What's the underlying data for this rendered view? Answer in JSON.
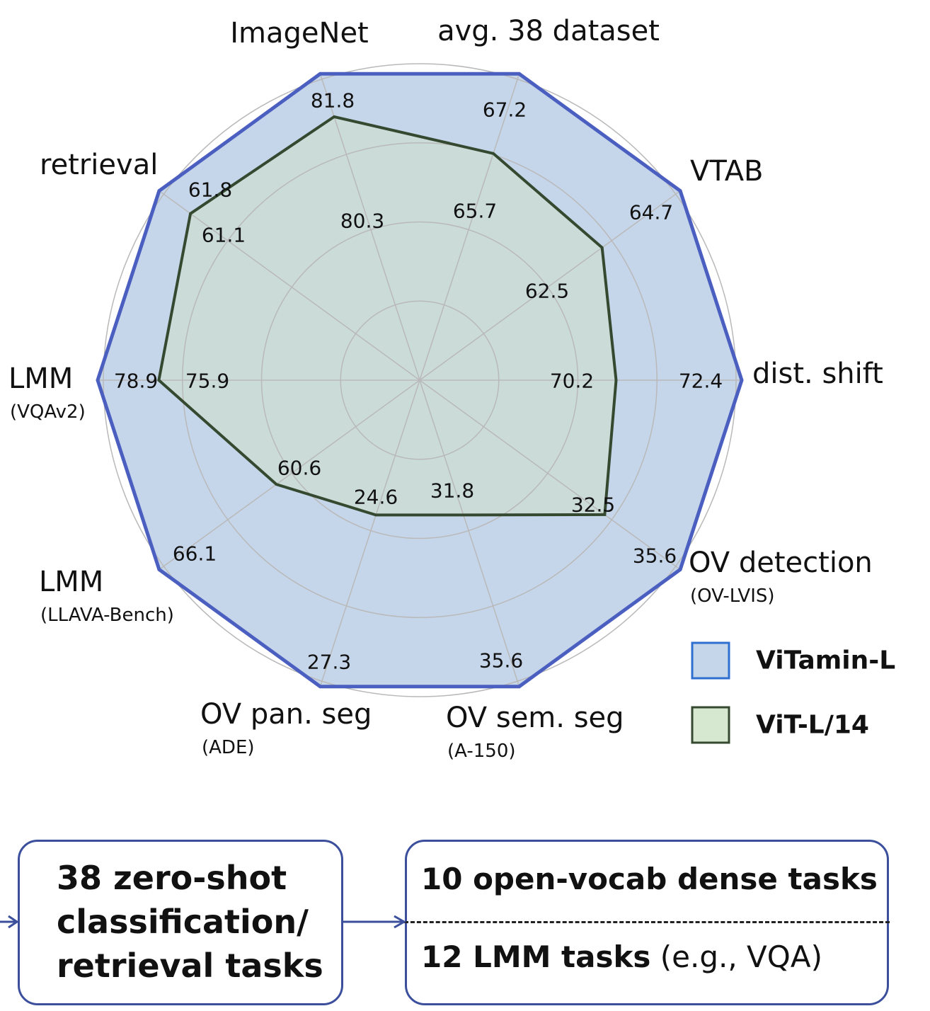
{
  "chart_data": {
    "type": "radar",
    "axes": [
      {
        "label": "ImageNet",
        "sub": ""
      },
      {
        "label": "avg. 38 dataset",
        "sub": ""
      },
      {
        "label": "VTAB",
        "sub": ""
      },
      {
        "label": "dist. shift",
        "sub": ""
      },
      {
        "label": "OV detection",
        "sub": "(OV-LVIS)"
      },
      {
        "label": "OV sem. seg",
        "sub": "(A-150)"
      },
      {
        "label": "OV pan. seg",
        "sub": "(ADE)"
      },
      {
        "label": "LMM",
        "sub": "(LLAVA-Bench)"
      },
      {
        "label": "LMM",
        "sub": "(VQAv2)"
      },
      {
        "label": "retrieval",
        "sub": ""
      }
    ],
    "series": [
      {
        "name": "ViTamin-L",
        "color": "#4a5fc0",
        "fill": "#c6d6ea",
        "values": [
          81.8,
          67.2,
          64.7,
          72.4,
          35.6,
          35.6,
          27.3,
          66.1,
          78.9,
          61.8
        ],
        "normalized": [
          1,
          1,
          1,
          1,
          1,
          1,
          1,
          1,
          1,
          1
        ]
      },
      {
        "name": "ViT-L/14",
        "color": "#34492f",
        "fill": "#cfe0c8",
        "values": [
          80.3,
          65.7,
          62.5,
          70.2,
          32.5,
          31.8,
          24.6,
          60.6,
          75.9,
          61.1
        ],
        "normalized": [
          0.86,
          0.74,
          0.7,
          0.61,
          0.71,
          0.44,
          0.44,
          0.55,
          0.81,
          0.88
        ]
      }
    ],
    "grid": true,
    "legend": "bottom-right"
  },
  "legend": {
    "items": [
      {
        "label": "ViTamin-L",
        "color": "#2e6fd0",
        "fill": "#c6d6ea"
      },
      {
        "label": "ViT-L/14",
        "color": "#34492f",
        "fill": "#d6e8cf"
      }
    ]
  },
  "flow": {
    "box1": {
      "lines": [
        "38 zero-shot",
        "classification/",
        "retrieval tasks"
      ]
    },
    "box2": {
      "row1": "10 open-vocab dense tasks",
      "row2_bold": "12 LMM tasks",
      "row2_rest": " (e.g., VQA)"
    }
  }
}
